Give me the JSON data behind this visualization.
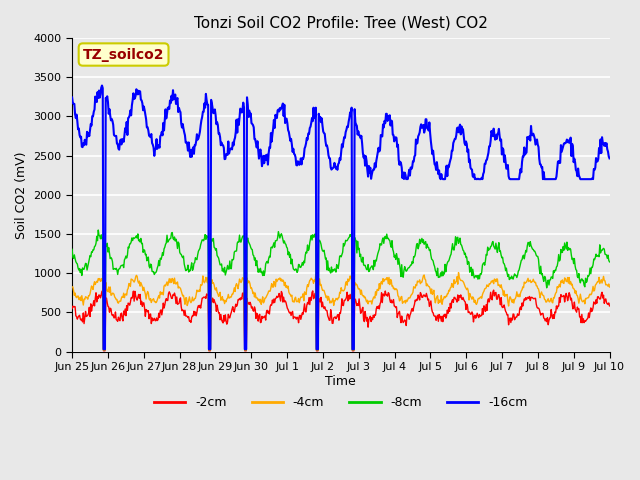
{
  "title": "Tonzi Soil CO2 Profile: Tree (West) CO2",
  "ylabel": "Soil CO2 (mV)",
  "xlabel": "Time",
  "legend_label": "TZ_soilco2",
  "ylim": [
    0,
    4000
  ],
  "series_labels": [
    "-2cm",
    "-4cm",
    "-8cm",
    "-16cm"
  ],
  "series_colors": [
    "#ff0000",
    "#ffaa00",
    "#00cc00",
    "#0000ff"
  ],
  "background_color": "#e8e8e8",
  "plot_bg_color": "#e8e8e8",
  "grid_color": "#ffffff",
  "tick_positions": [
    0,
    1,
    2,
    3,
    4,
    5,
    6,
    7,
    8,
    9,
    10,
    11,
    12,
    13,
    14,
    15
  ],
  "tick_label_dates": [
    "Jun 25",
    "Jun 26",
    "Jun 27",
    "Jun 28",
    "Jun 29",
    "Jun 30",
    "Jul 1",
    "Jul 2",
    "Jul 3",
    "Jul 4",
    "Jul 5",
    "Jul 6",
    "Jul 7",
    "Jul 8",
    "Jul 9",
    "Jul 10"
  ],
  "legend_box_color": "#ffffcc",
  "legend_box_edge": "#cccc00",
  "legend_text_color": "#990000"
}
